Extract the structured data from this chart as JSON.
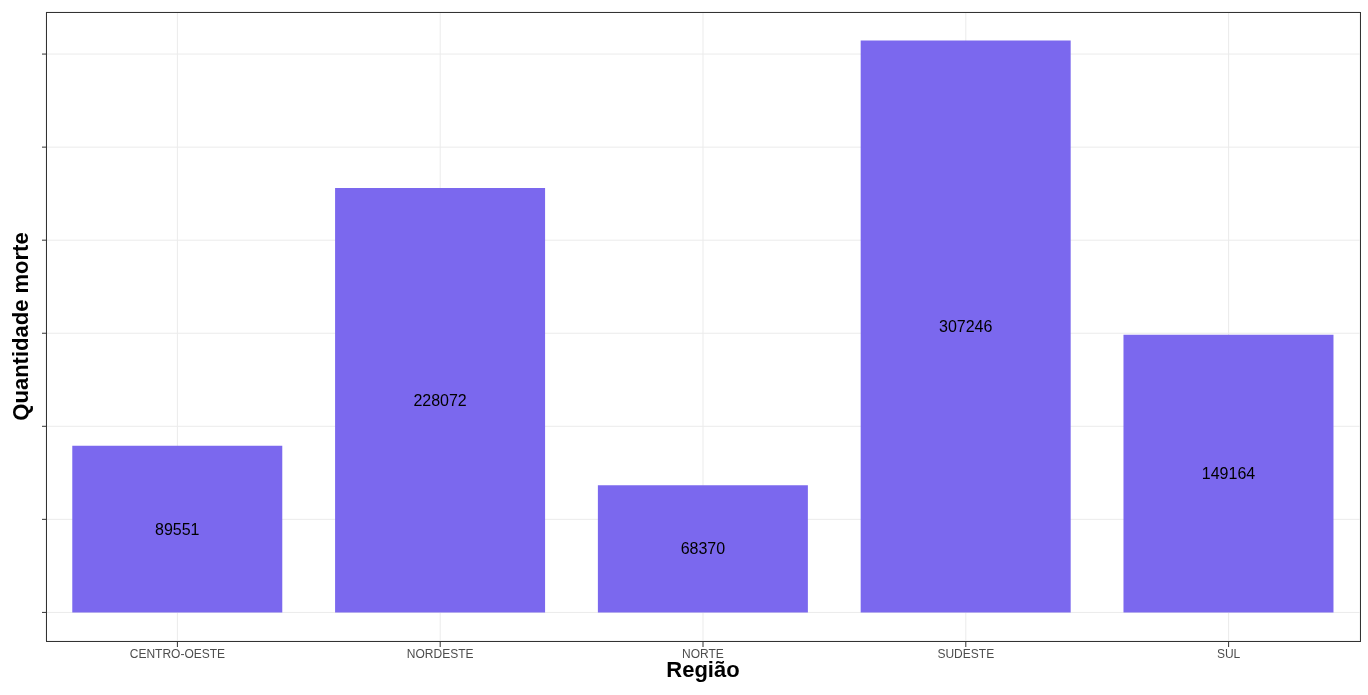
{
  "chart_data": {
    "type": "bar",
    "xlabel": "Região",
    "ylabel": "Quantidade morte",
    "categories": [
      "CENTRO-OESTE",
      "NORDESTE",
      "NORTE",
      "SUDESTE",
      "SUL"
    ],
    "values": [
      89551,
      228072,
      68370,
      307246,
      149164
    ],
    "color": "#7b68ee",
    "ylim": [
      -15362,
      322608
    ],
    "yticks": [
      {
        "value": 0,
        "label": null
      },
      {
        "value": 50000,
        "label": null
      },
      {
        "value": 100000,
        "label": null
      },
      {
        "value": 150000,
        "label": null
      },
      {
        "value": 200000,
        "label": null
      },
      {
        "value": 250000,
        "label": null
      },
      {
        "value": 300000,
        "label": null
      }
    ],
    "tick_labels": "x",
    "grid": true,
    "data_labels": true
  }
}
